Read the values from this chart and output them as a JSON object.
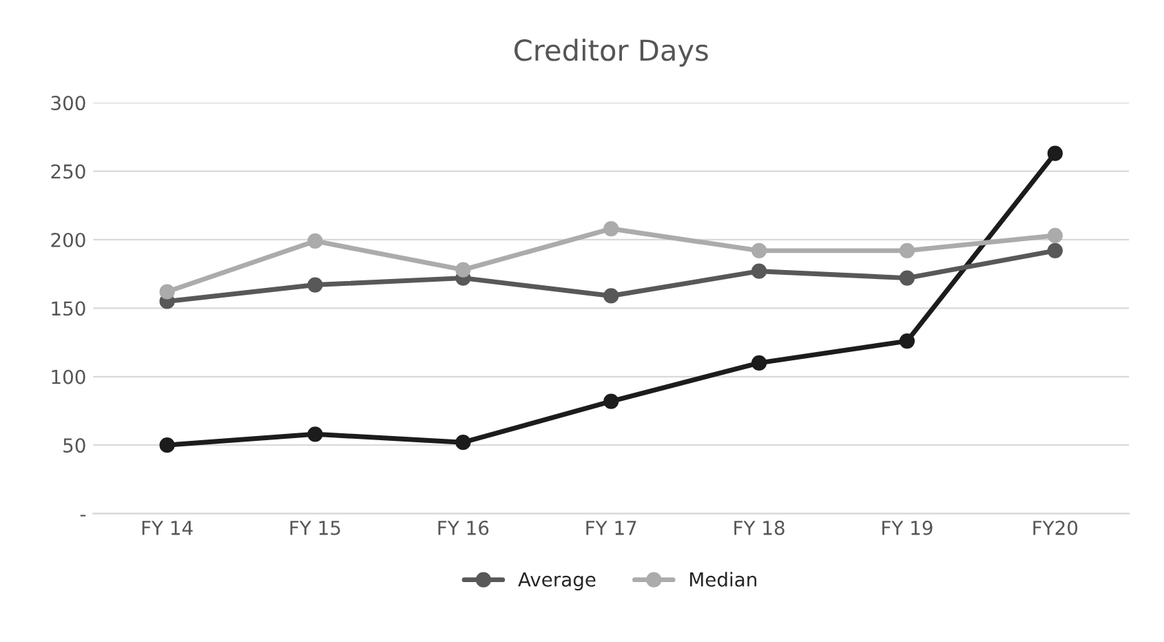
{
  "chart_data": {
    "type": "line",
    "title": "Creditor Days",
    "categories": [
      "FY 14",
      "FY 15",
      "FY 16",
      "FY 17",
      "FY 18",
      "FY 19",
      "FY20"
    ],
    "series": [
      {
        "color": "#1c1c1c",
        "values": [
          50,
          58,
          52,
          82,
          110,
          126,
          263
        ]
      },
      {
        "name": "Average",
        "color": "#585858",
        "values": [
          155,
          167,
          172,
          159,
          177,
          172,
          192
        ]
      },
      {
        "name": "Median",
        "color": "#ababab",
        "values": [
          162,
          199,
          178,
          208,
          192,
          192,
          203
        ]
      }
    ],
    "ylim": [
      0,
      300
    ],
    "yticks": [
      {
        "value": 0,
        "label": "-"
      },
      50,
      100,
      150,
      200,
      250,
      300
    ],
    "grid": "y",
    "legend": "bottom",
    "marker": "circle",
    "line_style": "solid"
  }
}
